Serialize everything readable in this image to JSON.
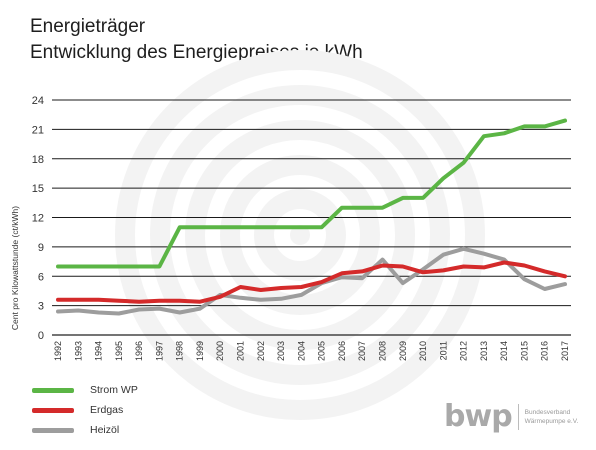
{
  "title_line1": "Energieträger",
  "title_line2": "Entwicklung des Energiepreises je kWh",
  "brand": {
    "logo": "bwp",
    "line1": "Bundesverband",
    "line2": "Wärmepumpe e.V."
  },
  "chart_data": {
    "type": "line",
    "title": "Energieträger Entwicklung des Energiepreises je kWh",
    "xlabel": "",
    "ylabel": "Cent pro Kilowattstunde (ct/kWh)",
    "ylim": [
      0,
      24
    ],
    "yticks": [
      "0",
      "3",
      "6",
      "9",
      "12",
      "15",
      "18",
      "21",
      "24"
    ],
    "grid": true,
    "legend_position": "bottom-left",
    "x": [
      "1992",
      "1993",
      "1994",
      "1995",
      "1996",
      "1997",
      "1998",
      "1999",
      "2000",
      "2001",
      "2002",
      "2003",
      "2004",
      "2005",
      "2006",
      "2007",
      "2008",
      "2009",
      "2010",
      "2011",
      "2012",
      "2013",
      "2014",
      "2015",
      "2016",
      "2017"
    ],
    "series": [
      {
        "name": "Strom WP",
        "color": "#5bb545",
        "values": [
          7,
          7,
          7,
          7,
          7,
          7,
          11,
          11,
          11,
          11,
          11,
          11,
          11,
          11,
          13,
          13,
          13,
          14,
          14,
          16,
          17.6,
          20.3,
          20.6,
          21.3,
          21.3,
          21.9
        ]
      },
      {
        "name": "Erdgas",
        "color": "#d42a2a",
        "values": [
          3.6,
          3.6,
          3.6,
          3.5,
          3.4,
          3.5,
          3.5,
          3.4,
          3.9,
          4.9,
          4.6,
          4.8,
          4.9,
          5.4,
          6.3,
          6.5,
          7.1,
          7,
          6.4,
          6.6,
          7,
          6.9,
          7.4,
          7.1,
          6.5,
          6
        ]
      },
      {
        "name": "Heizöl",
        "color": "#9d9d9d",
        "values": [
          2.4,
          2.5,
          2.3,
          2.2,
          2.6,
          2.7,
          2.3,
          2.7,
          4.1,
          3.8,
          3.6,
          3.7,
          4.1,
          5.3,
          5.9,
          5.8,
          7.7,
          5.3,
          6.7,
          8.2,
          8.8,
          8.3,
          7.7,
          5.7,
          4.7,
          5.2
        ]
      }
    ]
  }
}
